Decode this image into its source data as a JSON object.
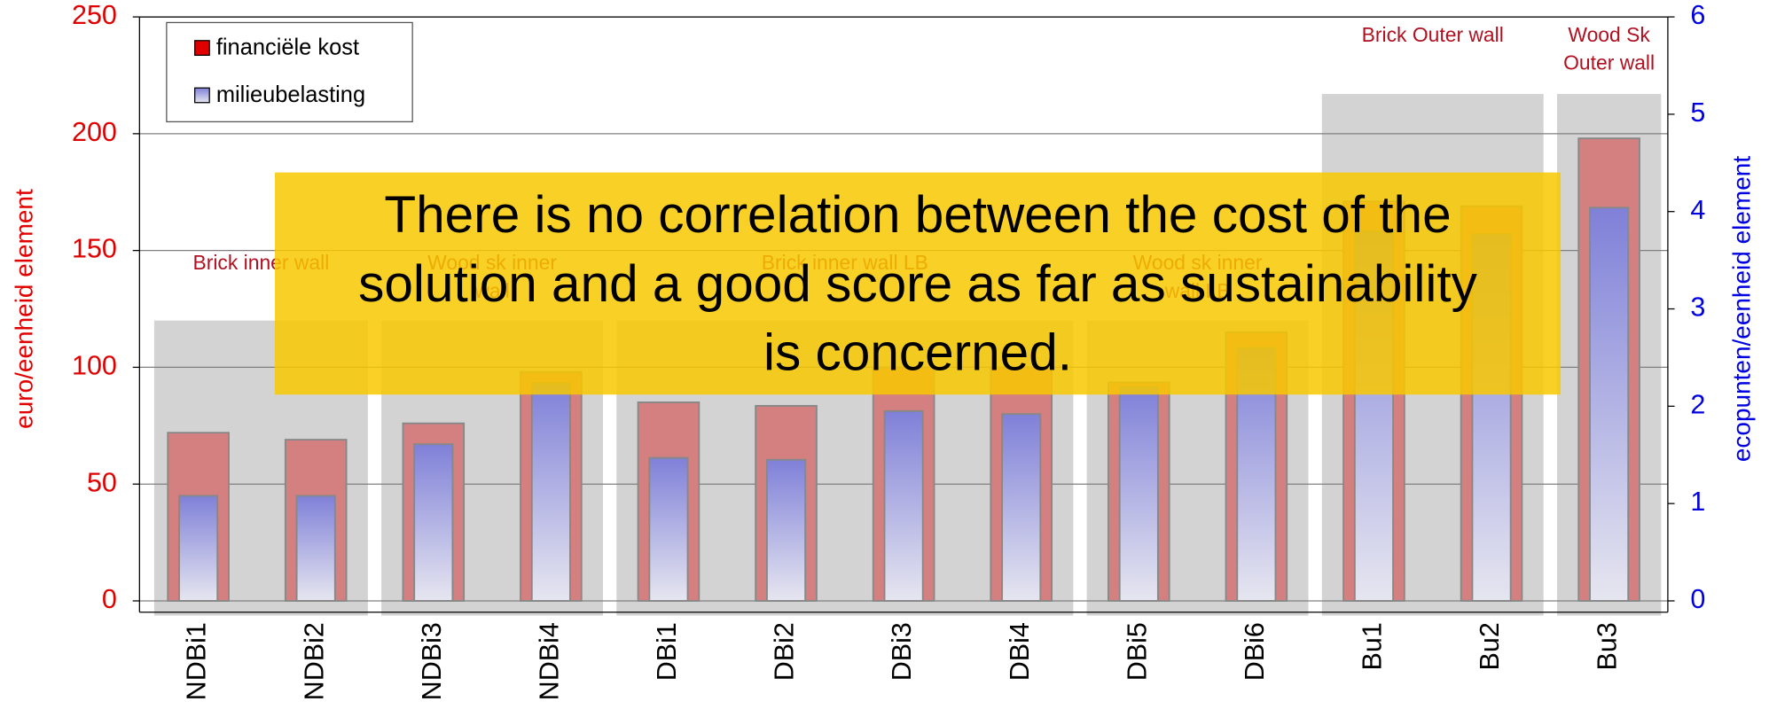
{
  "chart_data": {
    "type": "bar",
    "categories": [
      "NDBi1",
      "NDBi2",
      "NDBi3",
      "NDBi4",
      "DBi1",
      "DBi2",
      "DBi3",
      "DBi4",
      "DBi5",
      "DBi6",
      "Bu1",
      "Bu2",
      "Bu3"
    ],
    "series": [
      {
        "name": "financiële kost",
        "color": "#d48080",
        "values": [
          72,
          69,
          76,
          98,
          85,
          83.5,
          100,
          100,
          93.5,
          115,
          171,
          169,
          198
        ]
      },
      {
        "name": "milieubelasting",
        "color": "#7f80d8",
        "axis": "y2",
        "values": [
          1.08,
          1.08,
          1.61,
          2.24,
          1.47,
          1.45,
          1.95,
          1.92,
          2.2,
          2.6,
          3.8,
          3.77,
          4.04
        ]
      }
    ],
    "groups": [
      {
        "label": [
          "Brick inner wall"
        ],
        "members": [
          "NDBi1",
          "NDBi2"
        ],
        "value": 120
      },
      {
        "label": [
          "Wood sk inner",
          "wall"
        ],
        "members": [
          "NDBi3",
          "NDBi4"
        ],
        "value": 120
      },
      {
        "label": [
          "Brick inner wall LB"
        ],
        "members": [
          "DBi1",
          "DBi2",
          "DBi3",
          "DBi4"
        ],
        "value": 120
      },
      {
        "label": [
          "Wood sk inner",
          "wall LB"
        ],
        "members": [
          "DBi5",
          "DBi6"
        ],
        "value": 120
      },
      {
        "label": [
          "Brick Outer wall"
        ],
        "members": [
          "Bu1",
          "Bu2"
        ],
        "value": 217
      },
      {
        "label": [
          "Wood Sk",
          "Outer wall"
        ],
        "members": [
          "Bu3"
        ],
        "value": 217
      }
    ],
    "ylabel": "euro/eenheid element",
    "y2label": "ecopunten/eenheid element",
    "ylim": [
      0,
      250
    ],
    "yticks": [
      0,
      50,
      100,
      150,
      200,
      250
    ],
    "y2lim": [
      0,
      6
    ],
    "y2ticks": [
      0,
      1,
      2,
      3,
      4,
      5,
      6
    ],
    "grid": true,
    "legend": "upper left",
    "annotation": [
      "There is no correlation between the cost of the",
      "solution and a good score as far as sustainability",
      "is concerned."
    ]
  }
}
